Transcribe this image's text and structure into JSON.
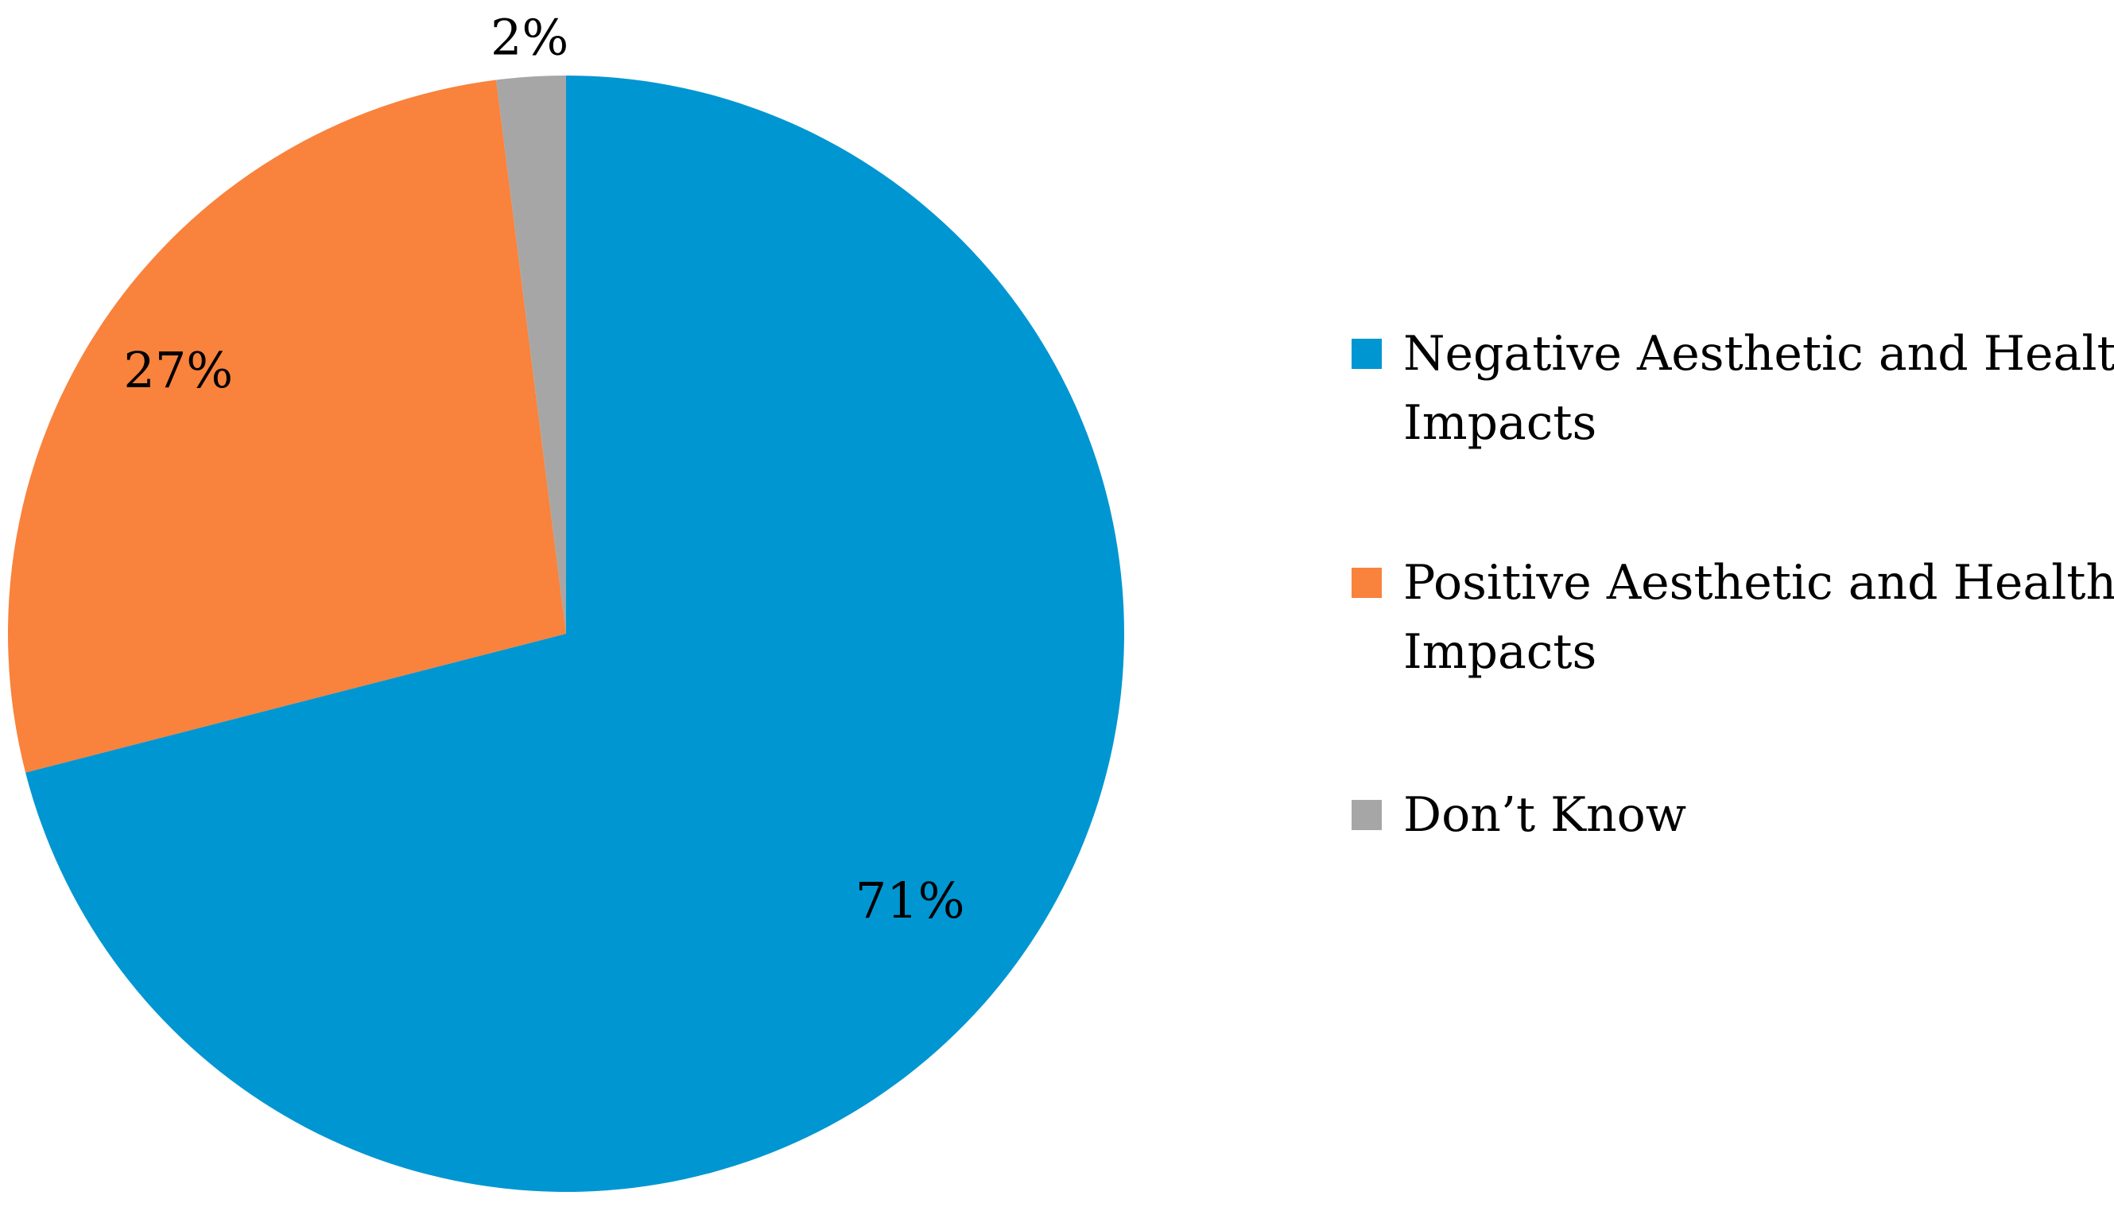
{
  "chart_data": {
    "type": "pie",
    "title": "",
    "start_angle_deg": 0,
    "direction": "clockwise",
    "slices": [
      {
        "label": "Negative Aesthetic and Health Impacts",
        "legend_lines": [
          "Negative Aesthetic and Health",
          "Impacts"
        ],
        "value": 71,
        "display": "71%",
        "color": "#0096D2"
      },
      {
        "label": "Positive Aesthetic and Health Impacts",
        "legend_lines": [
          "Positive Aesthetic and Health",
          "Impacts"
        ],
        "value": 27,
        "display": "27%",
        "color": "#F9823C"
      },
      {
        "label": "Don’t Know",
        "legend_lines": [
          "Don’t Know"
        ],
        "value": 2,
        "display": "2%",
        "color": "#A6A6A6"
      }
    ],
    "legend_position": "right"
  }
}
